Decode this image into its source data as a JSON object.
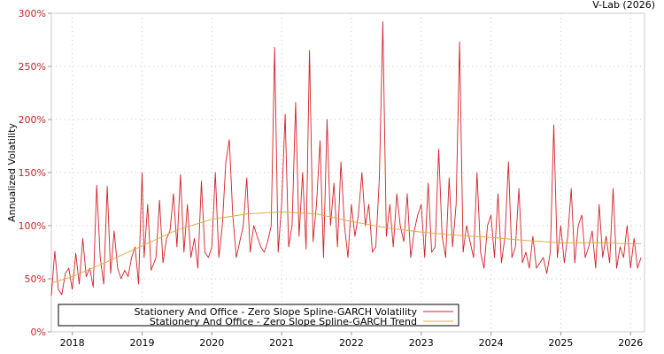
{
  "chart_data": {
    "type": "line",
    "credit": "V-Lab (2026)",
    "ylabel": "Annualized Volatility",
    "ylim": [
      0,
      300
    ],
    "y_ticks": [
      {
        "value": 0,
        "label": "0%"
      },
      {
        "value": 50,
        "label": "50%"
      },
      {
        "value": 100,
        "label": "100%"
      },
      {
        "value": 150,
        "label": "150%"
      },
      {
        "value": 200,
        "label": "200%"
      },
      {
        "value": 250,
        "label": "250%"
      },
      {
        "value": 300,
        "label": "300%"
      }
    ],
    "xlim": [
      2017.7,
      2026.2
    ],
    "x_ticks": [
      {
        "value": 2018,
        "label": "2018"
      },
      {
        "value": 2019,
        "label": "2019"
      },
      {
        "value": 2020,
        "label": "2020"
      },
      {
        "value": 2021,
        "label": "2021"
      },
      {
        "value": 2022,
        "label": "2022"
      },
      {
        "value": 2023,
        "label": "2023"
      },
      {
        "value": 2024,
        "label": "2024"
      },
      {
        "value": 2025,
        "label": "2025"
      },
      {
        "value": 2026,
        "label": "2026"
      }
    ],
    "grid": true,
    "colors": {
      "volatility": "#d42027",
      "trend": "#e0ad48",
      "axis_labels": "#cc2229",
      "grid": "#c8c8c8"
    },
    "legend": {
      "placement": "bottom-left",
      "entries": [
        "Stationery And Office - Zero Slope Spline-GARCH Volatility",
        "Stationery And Office - Zero Slope Spline-GARCH Trend"
      ]
    },
    "series": [
      {
        "name": "Stationery And Office - Zero Slope Spline-GARCH Volatility",
        "x": [
          2017.7,
          2017.75,
          2017.8,
          2017.85,
          2017.9,
          2017.95,
          2018.0,
          2018.05,
          2018.1,
          2018.15,
          2018.2,
          2018.25,
          2018.3,
          2018.35,
          2018.4,
          2018.45,
          2018.5,
          2018.55,
          2018.6,
          2018.65,
          2018.7,
          2018.75,
          2018.8,
          2018.85,
          2018.9,
          2018.95,
          2019.0,
          2019.03,
          2019.08,
          2019.13,
          2019.2,
          2019.25,
          2019.3,
          2019.35,
          2019.4,
          2019.45,
          2019.5,
          2019.55,
          2019.6,
          2019.65,
          2019.7,
          2019.75,
          2019.8,
          2019.85,
          2019.9,
          2019.95,
          2020.0,
          2020.05,
          2020.1,
          2020.15,
          2020.2,
          2020.25,
          2020.3,
          2020.35,
          2020.4,
          2020.45,
          2020.5,
          2020.55,
          2020.6,
          2020.65,
          2020.7,
          2020.75,
          2020.8,
          2020.85,
          2020.9,
          2020.95,
          2021.0,
          2021.05,
          2021.1,
          2021.15,
          2021.2,
          2021.25,
          2021.3,
          2021.35,
          2021.4,
          2021.45,
          2021.5,
          2021.55,
          2021.6,
          2021.65,
          2021.7,
          2021.75,
          2021.8,
          2021.85,
          2021.9,
          2021.95,
          2022.0,
          2022.05,
          2022.1,
          2022.15,
          2022.2,
          2022.25,
          2022.3,
          2022.35,
          2022.4,
          2022.45,
          2022.5,
          2022.55,
          2022.6,
          2022.65,
          2022.7,
          2022.75,
          2022.8,
          2022.85,
          2022.9,
          2022.95,
          2023.0,
          2023.05,
          2023.1,
          2023.15,
          2023.2,
          2023.25,
          2023.3,
          2023.35,
          2023.4,
          2023.45,
          2023.5,
          2023.55,
          2023.6,
          2023.65,
          2023.7,
          2023.75,
          2023.8,
          2023.85,
          2023.9,
          2023.95,
          2024.0,
          2024.05,
          2024.1,
          2024.15,
          2024.2,
          2024.25,
          2024.3,
          2024.35,
          2024.4,
          2024.45,
          2024.5,
          2024.55,
          2024.6,
          2024.65,
          2024.7,
          2024.75,
          2024.8,
          2024.85,
          2024.9,
          2024.95,
          2025.0,
          2025.05,
          2025.1,
          2025.15,
          2025.2,
          2025.25,
          2025.3,
          2025.35,
          2025.4,
          2025.45,
          2025.5,
          2025.55,
          2025.6,
          2025.65,
          2025.7,
          2025.75,
          2025.8,
          2025.85,
          2025.9,
          2025.95,
          2026.0,
          2026.05,
          2026.1,
          2026.15
        ],
        "values": [
          34,
          76,
          40,
          35,
          55,
          60,
          40,
          74,
          45,
          88,
          52,
          60,
          42,
          138,
          70,
          45,
          137,
          55,
          95,
          60,
          50,
          58,
          52,
          70,
          80,
          45,
          150,
          70,
          120,
          58,
          70,
          124,
          65,
          88,
          95,
          130,
          80,
          148,
          75,
          120,
          70,
          88,
          60,
          142,
          75,
          70,
          80,
          150,
          70,
          100,
          160,
          181,
          110,
          70,
          85,
          100,
          145,
          75,
          100,
          90,
          80,
          75,
          85,
          100,
          268,
          75,
          120,
          205,
          80,
          100,
          216,
          90,
          150,
          78,
          265,
          85,
          120,
          180,
          70,
          200,
          100,
          140,
          80,
          160,
          100,
          70,
          120,
          90,
          110,
          150,
          100,
          120,
          75,
          80,
          145,
          292,
          90,
          120,
          80,
          130,
          100,
          85,
          130,
          70,
          95,
          110,
          120,
          70,
          140,
          75,
          80,
          172,
          90,
          70,
          145,
          80,
          120,
          273,
          75,
          100,
          85,
          70,
          150,
          75,
          60,
          100,
          110,
          70,
          130,
          65,
          90,
          160,
          70,
          80,
          135,
          65,
          75,
          60,
          90,
          60,
          65,
          70,
          55,
          75,
          195,
          70,
          100,
          65,
          90,
          135,
          65,
          100,
          110,
          70,
          80,
          95,
          60,
          120,
          70,
          90,
          65,
          135,
          60,
          80,
          70,
          100,
          60,
          88,
          60,
          70
        ]
      },
      {
        "name": "Stationery And Office - Zero Slope Spline-GARCH Trend",
        "x": [
          2017.7,
          2018.0,
          2018.5,
          2019.0,
          2019.5,
          2020.0,
          2020.5,
          2021.0,
          2021.5,
          2022.0,
          2022.5,
          2023.0,
          2023.5,
          2024.0,
          2024.5,
          2025.0,
          2025.5,
          2026.0,
          2026.15
        ],
        "values": [
          46,
          52,
          66,
          81,
          96,
          106,
          111,
          113,
          111,
          104,
          98,
          94,
          91,
          89,
          86,
          84,
          84,
          83,
          83
        ]
      }
    ]
  }
}
